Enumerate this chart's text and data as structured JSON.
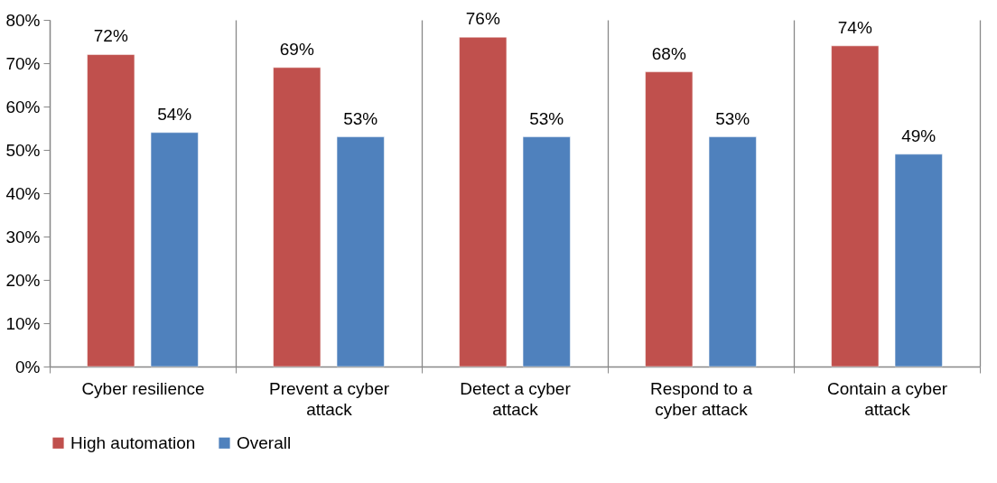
{
  "chart_data": {
    "type": "bar",
    "categories": [
      "Cyber resilience",
      "Prevent a cyber attack",
      "Detect a cyber attack",
      "Respond to a cyber attack",
      "Contain a cyber attack"
    ],
    "series": [
      {
        "name": "High automation",
        "color": "#c0504d",
        "values": [
          72,
          69,
          76,
          68,
          74
        ],
        "value_labels": [
          "72%",
          "69%",
          "76%",
          "68%",
          "74%"
        ]
      },
      {
        "name": "Overall",
        "color": "#4f81bd",
        "values": [
          54,
          53,
          53,
          53,
          49
        ],
        "value_labels": [
          "54%",
          "53%",
          "53%",
          "53%",
          "49%"
        ]
      }
    ],
    "ylim": [
      0,
      80
    ],
    "yticks": [
      {
        "value": 0,
        "label": "0%"
      },
      {
        "value": 10,
        "label": "10%"
      },
      {
        "value": 20,
        "label": "20%"
      },
      {
        "value": 30,
        "label": "30%"
      },
      {
        "value": 40,
        "label": "40%"
      },
      {
        "value": 50,
        "label": "50%"
      },
      {
        "value": 60,
        "label": "60%"
      },
      {
        "value": 70,
        "label": "70%"
      },
      {
        "value": 80,
        "label": "80%"
      }
    ],
    "grid": "x",
    "legend": "bottom"
  }
}
